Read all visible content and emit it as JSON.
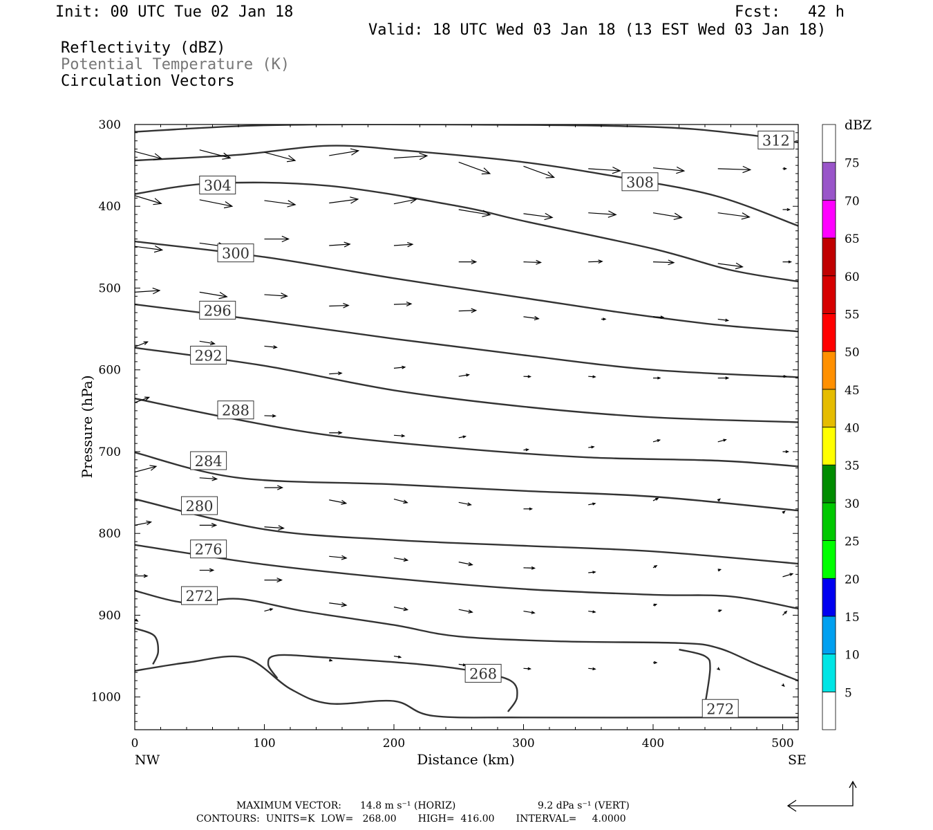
{
  "header": {
    "init": "Init: 00 UTC Tue 02 Jan 18",
    "fcst": "Fcst:   42 h",
    "valid": "Valid: 18 UTC Wed 03 Jan 18 (13 EST Wed 03 Jan 18)",
    "field1": "Reflectivity (dBZ)",
    "field2": "Potential Temperature (K)",
    "field3": "Circulation Vectors"
  },
  "footer": {
    "max_vector_label": "MAXIMUM VECTOR:",
    "max_vector_horiz": "14.8 m s⁻¹ (HORIZ)",
    "max_vector_vert": "9.2 dPa s⁻¹ (VERT)",
    "contours": "CONTOURS:  UNITS=K  LOW=   268.00       HIGH=  416.00       INTERVAL=     4.0000"
  },
  "colors": {
    "contour": "#333333",
    "vector": "#000000",
    "scale": [
      "#ffffff",
      "#00e5e5",
      "#00a0f0",
      "#0000f0",
      "#00ff00",
      "#00c800",
      "#008c00",
      "#ffff00",
      "#e5bc00",
      "#ff9000",
      "#ff0000",
      "#d60000",
      "#c00000",
      "#ff00ff",
      "#9955c9",
      "#ffffff"
    ]
  },
  "chart_data": {
    "type": "cross-section",
    "xlabel": "Distance (km)",
    "ylabel": "Pressure (hPa)",
    "xlim": [
      0,
      512
    ],
    "ylim": [
      300,
      1040
    ],
    "y_scale": "linear-reversed",
    "x_ticks": [
      0,
      100,
      200,
      300,
      400,
      500
    ],
    "y_ticks": [
      300,
      400,
      500,
      600,
      700,
      800,
      900,
      1000
    ],
    "x_end_labels": {
      "left": "NW",
      "right": "SE"
    },
    "colorbar": {
      "title": "dBZ",
      "labels": [
        "5",
        "10",
        "15",
        "20",
        "25",
        "30",
        "35",
        "40",
        "45",
        "50",
        "55",
        "60",
        "65",
        "70",
        "75"
      ]
    },
    "contours": [
      {
        "value": 312,
        "label": "312",
        "label_at": [
          481,
          319
        ],
        "points": [
          [
            0,
            309
          ],
          [
            100,
            301
          ],
          [
            250,
            300
          ],
          [
            400,
            303
          ],
          [
            470,
            312
          ],
          [
            512,
            322
          ]
        ]
      },
      {
        "value": 308,
        "label": "308",
        "label_at": [
          376,
          370
        ],
        "points": [
          [
            0,
            344
          ],
          [
            80,
            337
          ],
          [
            150,
            326
          ],
          [
            210,
            332
          ],
          [
            300,
            346
          ],
          [
            380,
            366
          ],
          [
            450,
            388
          ],
          [
            512,
            424
          ]
        ]
      },
      {
        "value": 304,
        "label": "304",
        "label_at": [
          50,
          374
        ],
        "points": [
          [
            0,
            385
          ],
          [
            60,
            372
          ],
          [
            150,
            375
          ],
          [
            250,
            400
          ],
          [
            300,
            418
          ],
          [
            400,
            452
          ],
          [
            460,
            478
          ],
          [
            512,
            492
          ]
        ]
      },
      {
        "value": 300,
        "label": "300",
        "label_at": [
          64,
          457
        ],
        "points": [
          [
            0,
            443
          ],
          [
            100,
            462
          ],
          [
            200,
            488
          ],
          [
            300,
            512
          ],
          [
            380,
            531
          ],
          [
            450,
            545
          ],
          [
            512,
            553
          ]
        ]
      },
      {
        "value": 296,
        "label": "296",
        "label_at": [
          50,
          527
        ],
        "points": [
          [
            0,
            520
          ],
          [
            100,
            540
          ],
          [
            200,
            562
          ],
          [
            300,
            582
          ],
          [
            400,
            600
          ],
          [
            512,
            609
          ]
        ]
      },
      {
        "value": 292,
        "label": "292",
        "label_at": [
          43,
          582
        ],
        "points": [
          [
            0,
            573
          ],
          [
            100,
            595
          ],
          [
            200,
            625
          ],
          [
            300,
            645
          ],
          [
            400,
            658
          ],
          [
            512,
            664
          ]
        ]
      },
      {
        "value": 288,
        "label": "288",
        "label_at": [
          64,
          649
        ],
        "points": [
          [
            0,
            635
          ],
          [
            70,
            658
          ],
          [
            150,
            680
          ],
          [
            250,
            696
          ],
          [
            350,
            707
          ],
          [
            450,
            711
          ],
          [
            512,
            718
          ]
        ]
      },
      {
        "value": 284,
        "label": "284",
        "label_at": [
          43,
          711
        ],
        "points": [
          [
            0,
            701
          ],
          [
            80,
            732
          ],
          [
            200,
            740
          ],
          [
            300,
            748
          ],
          [
            400,
            755
          ],
          [
            512,
            772
          ]
        ]
      },
      {
        "value": 280,
        "label": "280",
        "label_at": [
          36,
          766
        ],
        "points": [
          [
            0,
            758
          ],
          [
            100,
            795
          ],
          [
            200,
            808
          ],
          [
            300,
            815
          ],
          [
            400,
            822
          ],
          [
            512,
            837
          ]
        ]
      },
      {
        "value": 276,
        "label": "276",
        "label_at": [
          43,
          819
        ],
        "points": [
          [
            0,
            814
          ],
          [
            100,
            838
          ],
          [
            200,
            855
          ],
          [
            300,
            868
          ],
          [
            400,
            875
          ],
          [
            460,
            877
          ],
          [
            512,
            892
          ]
        ]
      },
      {
        "value": 272,
        "label": "272",
        "label_at": [
          36,
          876
        ],
        "points": [
          [
            0,
            870
          ],
          [
            40,
            885
          ],
          [
            80,
            880
          ],
          [
            130,
            895
          ],
          [
            200,
            912
          ],
          [
            250,
            926
          ],
          [
            330,
            932
          ],
          [
            420,
            934
          ],
          [
            450,
            940
          ],
          [
            480,
            960
          ],
          [
            512,
            980
          ]
        ]
      },
      {
        "value": 268,
        "label": "268",
        "label_at": [
          255,
          971
        ],
        "points": [
          [
            110,
            977
          ],
          [
            103,
            960
          ],
          [
            110,
            949
          ],
          [
            150,
            952
          ],
          [
            220,
            960
          ],
          [
            260,
            968
          ],
          [
            290,
            980
          ],
          [
            295,
            1000
          ],
          [
            288,
            1018
          ]
        ]
      },
      {
        "value": 272,
        "label": "272",
        "label_at": [
          438,
          1014
        ],
        "points": [
          [
            0,
            968
          ],
          [
            40,
            958
          ],
          [
            85,
            952
          ],
          [
            120,
            990
          ],
          [
            150,
            1008
          ],
          [
            200,
            1005
          ],
          [
            230,
            1023
          ],
          [
            300,
            1025
          ],
          [
            440,
            1025
          ],
          [
            512,
            1025
          ]
        ]
      },
      {
        "value": 272,
        "label": "",
        "label_at": null,
        "points": [
          [
            440,
            1010
          ],
          [
            444,
            965
          ],
          [
            440,
            950
          ],
          [
            420,
            942
          ]
        ]
      },
      {
        "value": 272,
        "label": "",
        "label_at": null,
        "points": [
          [
            0,
            916
          ],
          [
            15,
            925
          ],
          [
            18,
            945
          ],
          [
            14,
            960
          ]
        ]
      }
    ],
    "vectors": [
      [
        0,
        333,
        40,
        0.8
      ],
      [
        50,
        331,
        46,
        0.8
      ],
      [
        100,
        334,
        46,
        0.8
      ],
      [
        150,
        338,
        43,
        -0.5
      ],
      [
        200,
        341,
        48,
        -0.2
      ],
      [
        250,
        346,
        48,
        1.1
      ],
      [
        300,
        351,
        47,
        1.1
      ],
      [
        350,
        354,
        46,
        0.2
      ],
      [
        400,
        353,
        45,
        0.3
      ],
      [
        450,
        354,
        47,
        0.1
      ],
      [
        500,
        354,
        5,
        0
      ],
      [
        0,
        387,
        40,
        0.9
      ],
      [
        50,
        392,
        48,
        0.6
      ],
      [
        100,
        393,
        45,
        0.4
      ],
      [
        150,
        396,
        42,
        -0.4
      ],
      [
        200,
        397,
        33,
        -0.6
      ],
      [
        250,
        404,
        46,
        0.5
      ],
      [
        300,
        409,
        42,
        0.4
      ],
      [
        350,
        408,
        40,
        0.2
      ],
      [
        400,
        408,
        42,
        0.5
      ],
      [
        450,
        408,
        46,
        0.4
      ],
      [
        500,
        404,
        10,
        0
      ],
      [
        0,
        449,
        40,
        0.4
      ],
      [
        50,
        445,
        38,
        0.4
      ],
      [
        100,
        440,
        35,
        0
      ],
      [
        150,
        448,
        30,
        -0.2
      ],
      [
        200,
        448,
        27,
        -0.2
      ],
      [
        250,
        468,
        25,
        0
      ],
      [
        300,
        468,
        25,
        0.1
      ],
      [
        350,
        468,
        20,
        -0.1
      ],
      [
        400,
        468,
        30,
        0.1
      ],
      [
        450,
        470,
        36,
        0.4
      ],
      [
        500,
        468,
        12,
        0
      ],
      [
        0,
        505,
        36,
        -0.2
      ],
      [
        50,
        505,
        40,
        0.5
      ],
      [
        100,
        508,
        33,
        0.2
      ],
      [
        150,
        522,
        28,
        -0.1
      ],
      [
        200,
        520,
        25,
        -0.1
      ],
      [
        250,
        528,
        25,
        -0.1
      ],
      [
        300,
        535,
        22,
        0.4
      ],
      [
        360,
        538,
        6,
        0
      ],
      [
        400,
        535,
        15,
        0.2
      ],
      [
        450,
        538,
        15,
        0.4
      ],
      [
        0,
        572,
        20,
        -1.2
      ],
      [
        50,
        565,
        22,
        0.5
      ],
      [
        100,
        571,
        18,
        0.3
      ],
      [
        150,
        605,
        18,
        -0.2
      ],
      [
        200,
        598,
        16,
        -0.3
      ],
      [
        250,
        608,
        15,
        -0.5
      ],
      [
        300,
        608,
        10,
        0.1
      ],
      [
        350,
        608,
        10,
        0.2
      ],
      [
        400,
        610,
        10,
        0
      ],
      [
        450,
        610,
        15,
        0
      ],
      [
        500,
        608,
        5,
        0
      ],
      [
        0,
        640,
        22,
        -1.1
      ],
      [
        100,
        656,
        16,
        0.1
      ],
      [
        150,
        677,
        18,
        0
      ],
      [
        200,
        680,
        15,
        0.2
      ],
      [
        250,
        683,
        10,
        -0.6
      ],
      [
        300,
        698,
        7,
        -0.3
      ],
      [
        350,
        695,
        8,
        -0.4
      ],
      [
        400,
        688,
        10,
        -0.8
      ],
      [
        450,
        688,
        12,
        -0.8
      ],
      [
        500,
        700,
        8,
        0
      ],
      [
        0,
        725,
        32,
        -0.8
      ],
      [
        50,
        732,
        25,
        0.2
      ],
      [
        100,
        744,
        26,
        0
      ],
      [
        150,
        759,
        25,
        0.6
      ],
      [
        200,
        758,
        20,
        0.8
      ],
      [
        250,
        762,
        18,
        0.6
      ],
      [
        300,
        770,
        12,
        0
      ],
      [
        350,
        765,
        10,
        -0.6
      ],
      [
        400,
        760,
        8,
        -1.5
      ],
      [
        450,
        760,
        4,
        -2.5
      ],
      [
        500,
        775,
        4,
        -2.5
      ],
      [
        0,
        790,
        24,
        -0.6
      ],
      [
        50,
        790,
        24,
        0
      ],
      [
        100,
        792,
        28,
        0.2
      ],
      [
        150,
        828,
        25,
        0.3
      ],
      [
        200,
        830,
        20,
        0.5
      ],
      [
        250,
        835,
        20,
        0.6
      ],
      [
        300,
        842,
        16,
        0.1
      ],
      [
        350,
        848,
        10,
        -0.3
      ],
      [
        400,
        842,
        6,
        -1.8
      ],
      [
        450,
        845,
        4,
        -0.8
      ],
      [
        500,
        853,
        15,
        -0.9
      ],
      [
        0,
        852,
        18,
        0
      ],
      [
        50,
        845,
        20,
        0
      ],
      [
        100,
        857,
        25,
        0
      ],
      [
        150,
        885,
        25,
        0.4
      ],
      [
        200,
        890,
        20,
        0.6
      ],
      [
        250,
        893,
        20,
        0.6
      ],
      [
        300,
        895,
        16,
        0.5
      ],
      [
        350,
        895,
        10,
        0.4
      ],
      [
        400,
        888,
        5,
        -1
      ],
      [
        450,
        895,
        5,
        -0.8
      ],
      [
        500,
        900,
        8,
        -3
      ],
      [
        0,
        905,
        5,
        1.8
      ],
      [
        50,
        885,
        6,
        -0.5
      ],
      [
        100,
        895,
        12,
        -0.8
      ],
      [
        150,
        955,
        4,
        0.5
      ],
      [
        200,
        950,
        10,
        0.5
      ],
      [
        250,
        960,
        10,
        0.4
      ],
      [
        300,
        965,
        10,
        0.2
      ],
      [
        350,
        965,
        10,
        0.3
      ],
      [
        400,
        958,
        5,
        0
      ],
      [
        450,
        965,
        3,
        2.5
      ],
      [
        500,
        985,
        3,
        3
      ]
    ]
  }
}
